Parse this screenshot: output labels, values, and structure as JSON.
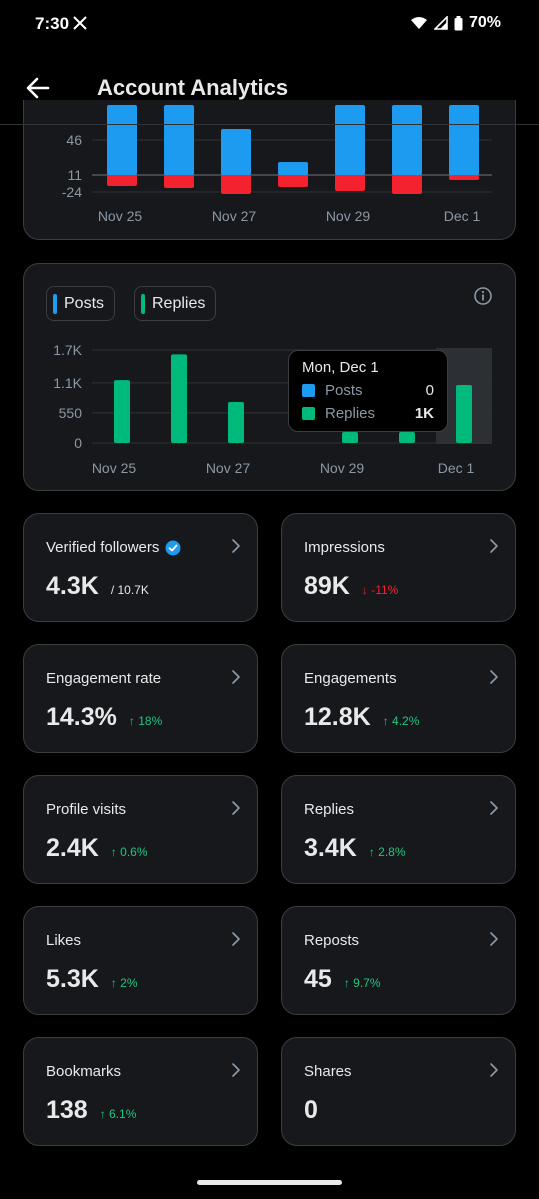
{
  "status_bar": {
    "time": "7:30",
    "battery": "70%"
  },
  "header": {
    "title": "Account Analytics"
  },
  "chart_top": {
    "chart_data": {
      "type": "bar",
      "categories": [
        "Nov 25",
        "Nov 26",
        "Nov 27",
        "Nov 28",
        "Nov 29",
        "Nov 30",
        "Dec 1"
      ],
      "series": [
        {
          "values": [
            70,
            70,
            46,
            13,
            70,
            70,
            70
          ],
          "color": "#1d9bf0"
        },
        {
          "values": [
            -11,
            -13,
            -19,
            -12,
            -16,
            -19,
            -5
          ],
          "color": "#f4212e"
        }
      ],
      "y_ticks": [
        "46",
        "11",
        "-24"
      ],
      "x_tick_labels": [
        "Nov 25",
        "Nov 27",
        "Nov 29",
        "Dec 1"
      ]
    }
  },
  "chart_mid": {
    "legend": [
      {
        "label": "Posts",
        "color": "#1d9bf0"
      },
      {
        "label": "Replies",
        "color": "#00ba7c"
      }
    ],
    "tooltip": {
      "title": "Mon, Dec 1",
      "rows": [
        {
          "label": "Posts",
          "value": "0",
          "color": "#1d9bf0"
        },
        {
          "label": "Replies",
          "value": "1K",
          "color": "#00ba7c"
        }
      ]
    },
    "chart_data": {
      "type": "bar",
      "categories": [
        "Nov 25",
        "Nov 26",
        "Nov 27",
        "Nov 28",
        "Nov 29",
        "Nov 30",
        "Dec 1"
      ],
      "series": [
        {
          "name": "Posts",
          "values": [
            0,
            0,
            0,
            0,
            0,
            0,
            0
          ],
          "color": "#1d9bf0"
        },
        {
          "name": "Replies",
          "values": [
            1150,
            1620,
            750,
            0,
            200,
            200,
            1060
          ],
          "color": "#00ba7c"
        }
      ],
      "y_ticks": [
        "1.7K",
        "1.1K",
        "550",
        "0"
      ],
      "x_tick_labels": [
        "Nov 25",
        "Nov 27",
        "Nov 29",
        "Dec 1"
      ],
      "ylim": [
        0,
        1700
      ],
      "highlight_index": 6
    }
  },
  "metrics": [
    {
      "label": "Verified followers",
      "value": "4.3K",
      "sub": "/ 10.7K",
      "change": "",
      "dir": ""
    },
    {
      "label": "Impressions",
      "value": "89K",
      "sub": "",
      "change": "↓ -11%",
      "dir": "down"
    },
    {
      "label": "Engagement rate",
      "value": "14.3%",
      "sub": "",
      "change": "↑ 18%",
      "dir": "up"
    },
    {
      "label": "Engagements",
      "value": "12.8K",
      "sub": "",
      "change": "↑ 4.2%",
      "dir": "up"
    },
    {
      "label": "Profile visits",
      "value": "2.4K",
      "sub": "",
      "change": "↑ 0.6%",
      "dir": "up"
    },
    {
      "label": "Replies",
      "value": "3.4K",
      "sub": "",
      "change": "↑ 2.8%",
      "dir": "up"
    },
    {
      "label": "Likes",
      "value": "5.3K",
      "sub": "",
      "change": "↑ 2%",
      "dir": "up"
    },
    {
      "label": "Reposts",
      "value": "45",
      "sub": "",
      "change": "↑ 9.7%",
      "dir": "up"
    },
    {
      "label": "Bookmarks",
      "value": "138",
      "sub": "",
      "change": "↑ 6.1%",
      "dir": "up"
    },
    {
      "label": "Shares",
      "value": "0",
      "sub": "",
      "change": "",
      "dir": ""
    }
  ]
}
